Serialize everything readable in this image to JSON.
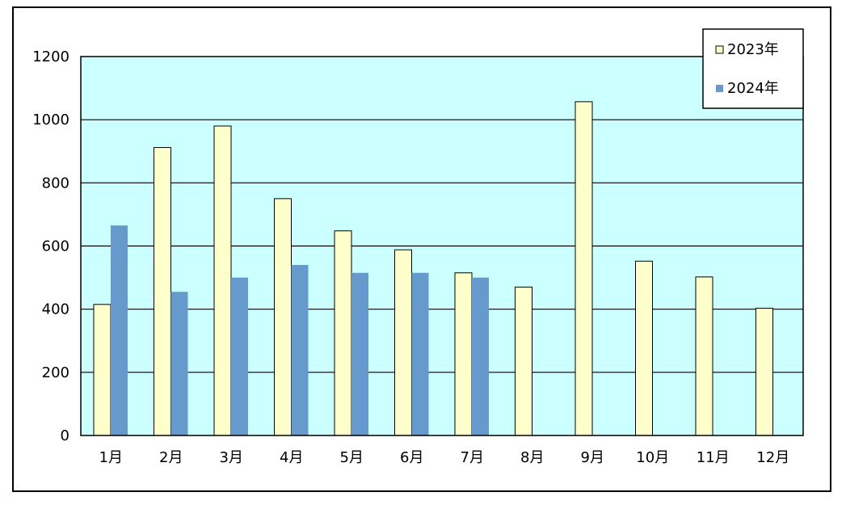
{
  "chart_data": {
    "type": "bar",
    "title": "",
    "xlabel": "",
    "ylabel": "",
    "categories": [
      "1月",
      "2月",
      "3月",
      "4月",
      "5月",
      "6月",
      "7月",
      "8月",
      "9月",
      "10月",
      "11月",
      "12月"
    ],
    "series": [
      {
        "name": "2023年",
        "color": "#ffffcc",
        "values": [
          415,
          912,
          980,
          750,
          648,
          588,
          515,
          470,
          1057,
          552,
          502,
          403
        ]
      },
      {
        "name": "2024年",
        "color": "#6699cc",
        "values": [
          665,
          455,
          500,
          540,
          515,
          515,
          500,
          null,
          null,
          null,
          null,
          null
        ]
      }
    ],
    "ylim": [
      0,
      1200
    ],
    "yticks": [
      "0",
      "200",
      "400",
      "600",
      "800",
      "1000",
      "1200"
    ],
    "grid": true,
    "plot_background": "#ccffff",
    "legend_position": "top-right"
  }
}
